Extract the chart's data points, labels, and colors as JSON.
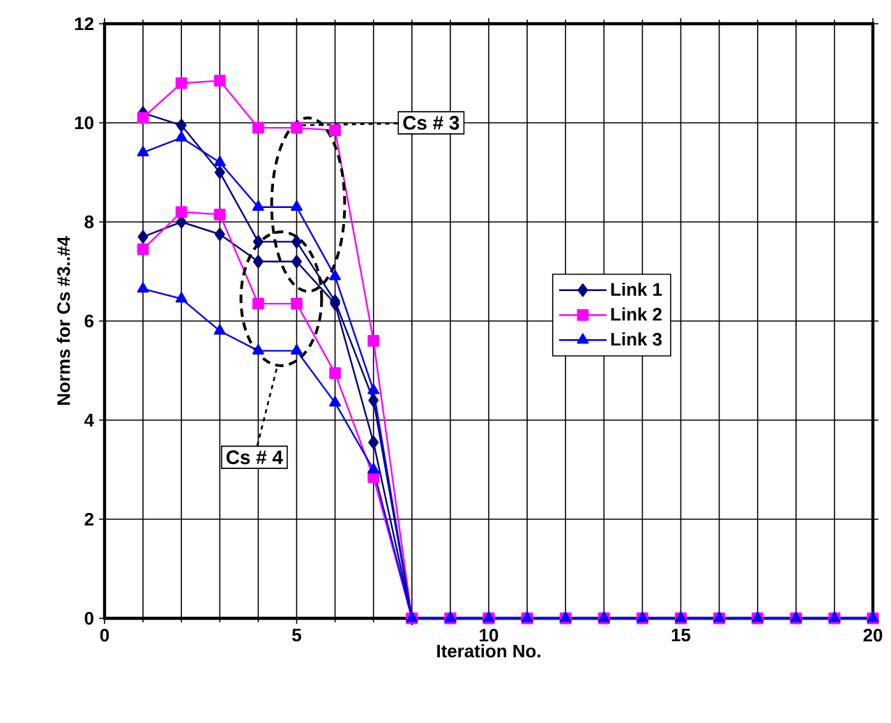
{
  "chart_data": {
    "type": "line",
    "xlabel": "Iteration No.",
    "ylabel": "Norms for Cs #3..#4",
    "xlim": [
      0,
      20
    ],
    "ylim": [
      0,
      12
    ],
    "xticks": [
      0,
      5,
      10,
      15,
      20
    ],
    "yticks": [
      0,
      2,
      4,
      6,
      8,
      10,
      12
    ],
    "grid": true,
    "legend": "right",
    "line_style": "solid",
    "x": [
      1,
      2,
      3,
      4,
      5,
      6,
      7,
      8,
      9,
      10,
      11,
      12,
      13,
      14,
      15,
      16,
      17,
      18,
      19,
      20
    ],
    "series": [
      {
        "name": "Link 1",
        "color": "#000080",
        "marker": "diamond",
        "values": [
          10.2,
          9.95,
          9.0,
          7.6,
          7.6,
          6.4,
          4.4,
          0,
          null,
          null,
          null,
          null,
          null,
          null,
          null,
          null,
          null,
          null,
          null,
          null
        ]
      },
      {
        "name": "Link 2",
        "color": "#ff00ff",
        "marker": "square",
        "values": [
          10.1,
          10.8,
          10.85,
          9.9,
          9.9,
          9.85,
          5.6,
          0,
          0,
          0,
          0,
          0,
          0,
          0,
          0,
          0,
          0,
          0,
          0,
          0
        ]
      },
      {
        "name": "Link 3",
        "color": "#0000ff",
        "marker": "triangle",
        "values": [
          9.4,
          9.7,
          9.2,
          8.3,
          8.3,
          6.9,
          4.6,
          0,
          0,
          0,
          0,
          0,
          0,
          0,
          0,
          0,
          0,
          0,
          0,
          0
        ]
      },
      {
        "color": "#000080",
        "marker": "diamond",
        "values": [
          7.7,
          8.0,
          7.75,
          7.2,
          7.2,
          6.35,
          3.55,
          0,
          null,
          null,
          null,
          null,
          null,
          null,
          null,
          null,
          null,
          null,
          null,
          null
        ]
      },
      {
        "color": "#ff00ff",
        "marker": "square",
        "values": [
          7.45,
          8.2,
          8.15,
          6.35,
          6.35,
          4.95,
          2.85,
          0,
          0,
          0,
          0,
          0,
          0,
          0,
          0,
          0,
          0,
          0,
          0,
          0
        ]
      },
      {
        "color": "#0000ff",
        "marker": "triangle",
        "values": [
          6.65,
          6.45,
          5.8,
          5.4,
          5.4,
          4.35,
          3.0,
          0,
          0,
          0,
          0,
          0,
          0,
          0,
          0,
          0,
          0,
          0,
          0,
          0
        ]
      }
    ],
    "annotations": [
      {
        "text": "Cs # 3",
        "x": 5.1,
        "y": 9.95
      },
      "Cs # 4"
    ]
  }
}
